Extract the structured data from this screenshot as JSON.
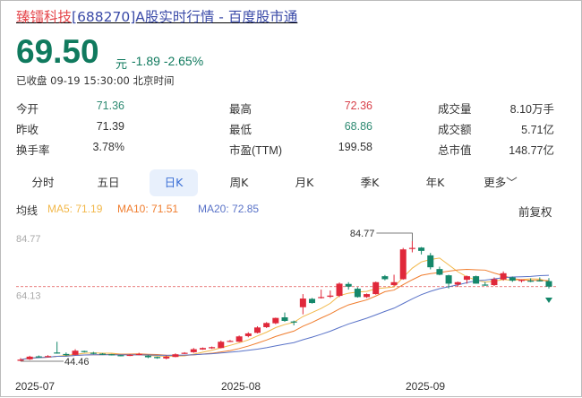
{
  "header": {
    "name": "臻镭科技",
    "rest": "[688270]A股实时行情 - 百度股市通"
  },
  "quote": {
    "price": "69.50",
    "unit": "元",
    "change": "-1.89",
    "change_pct": "-2.65%",
    "status": "已收盘 09-19 15:30:00 北京时间"
  },
  "stats": [
    {
      "label": "今开",
      "value": "71.36",
      "color": "#2e8a72"
    },
    {
      "label": "昨收",
      "value": "71.39",
      "color": "#333333"
    },
    {
      "label": "换手率",
      "value": "3.78%",
      "color": "#333333"
    },
    {
      "label": "最高",
      "value": "72.36",
      "color": "#d8414a"
    },
    {
      "label": "最低",
      "value": "68.86",
      "color": "#2e8a72"
    },
    {
      "label": "市盈(TTM)",
      "value": "199.58",
      "color": "#333333"
    },
    {
      "label": "成交量",
      "value": "8.10万手",
      "color": "#333333"
    },
    {
      "label": "成交额",
      "value": "5.71亿",
      "color": "#333333"
    },
    {
      "label": "总市值",
      "value": "148.77亿",
      "color": "#333333"
    }
  ],
  "tabs": [
    {
      "label": "分时"
    },
    {
      "label": "五日"
    },
    {
      "label": "日K",
      "selected": true
    },
    {
      "label": "周K"
    },
    {
      "label": "月K"
    },
    {
      "label": "季K"
    },
    {
      "label": "年K"
    },
    {
      "label": "更多﹀"
    }
  ],
  "ma": {
    "label": "均线",
    "ma5": "MA5: 71.19",
    "ma10": "MA10: 71.51",
    "ma20": "MA20: 72.85",
    "adjust": "前复权"
  },
  "colors": {
    "up": "#e0283a",
    "down": "#14876a",
    "ma5": "#f2b84a",
    "ma10": "#f07d2e",
    "ma20": "#5a73c8",
    "last_line": "#e05050"
  },
  "chart_data": {
    "type": "candlestick",
    "y_labels": [
      "84.77",
      "64.13"
    ],
    "high_marker": "84.77",
    "low_marker": "44.46",
    "x_labels": [
      "2025-07",
      "2025-08",
      "2025-09"
    ],
    "ylim": [
      44.46,
      84.77
    ],
    "last_close": 69.5,
    "ohlc": [
      [
        44.6,
        45.5,
        44.46,
        45.0
      ],
      [
        45.1,
        46.3,
        44.9,
        46.0
      ],
      [
        46.1,
        46.4,
        45.6,
        46.0
      ],
      [
        45.9,
        46.5,
        45.7,
        46.2
      ],
      [
        47.4,
        51.0,
        47.0,
        47.3
      ],
      [
        46.9,
        47.4,
        46.2,
        46.5
      ],
      [
        46.6,
        48.5,
        46.4,
        48.0
      ],
      [
        47.9,
        48.0,
        47.4,
        47.6
      ],
      [
        47.3,
        47.6,
        46.8,
        47.0
      ],
      [
        47.0,
        47.2,
        46.6,
        46.8
      ],
      [
        46.8,
        46.9,
        46.4,
        46.5
      ],
      [
        46.5,
        46.6,
        46.1,
        46.3
      ],
      [
        46.3,
        46.8,
        46.2,
        46.6
      ],
      [
        46.6,
        47.3,
        46.5,
        46.9
      ],
      [
        46.3,
        46.5,
        45.5,
        45.8
      ],
      [
        45.9,
        46.0,
        45.3,
        45.5
      ],
      [
        45.4,
        46.4,
        45.1,
        46.0
      ],
      [
        45.9,
        47.1,
        45.8,
        46.8
      ],
      [
        47.0,
        47.5,
        46.9,
        47.3
      ],
      [
        47.5,
        48.9,
        47.3,
        48.5
      ],
      [
        48.4,
        49.1,
        48.3,
        48.9
      ],
      [
        48.8,
        49.4,
        48.6,
        49.2
      ],
      [
        48.9,
        51.4,
        48.8,
        51.0
      ],
      [
        51.0,
        51.6,
        50.9,
        51.3
      ],
      [
        51.0,
        53.1,
        50.9,
        52.8
      ],
      [
        52.9,
        54.2,
        52.5,
        53.8
      ],
      [
        54.0,
        56.2,
        53.8,
        55.8
      ],
      [
        55.9,
        57.6,
        55.6,
        57.3
      ],
      [
        57.2,
        59.1,
        56.9,
        59.0
      ],
      [
        59.2,
        60.8,
        57.7,
        58.0
      ],
      [
        57.8,
        58.1,
        56.5,
        57.5
      ],
      [
        62.6,
        67.0,
        60.2,
        65.5
      ],
      [
        65.4,
        65.7,
        63.8,
        64.0
      ],
      [
        65.8,
        68.5,
        65.5,
        66.0
      ],
      [
        66.1,
        68.2,
        65.7,
        66.5
      ],
      [
        66.4,
        70.9,
        66.0,
        70.5
      ],
      [
        70.4,
        71.0,
        68.5,
        69.5
      ],
      [
        68.8,
        69.3,
        65.8,
        66.0
      ],
      [
        66.0,
        67.2,
        65.7,
        67.0
      ],
      [
        67.0,
        71.2,
        66.8,
        71.0
      ],
      [
        73.0,
        73.4,
        71.6,
        72.0
      ],
      [
        70.0,
        73.5,
        69.6,
        71.0
      ],
      [
        72.0,
        82.5,
        71.8,
        82.0
      ],
      [
        82.3,
        84.77,
        81.0,
        82.5
      ],
      [
        82.6,
        82.8,
        80.3,
        81.5
      ],
      [
        80.0,
        80.8,
        75.3,
        76.0
      ],
      [
        75.4,
        76.2,
        73.3,
        73.5
      ],
      [
        73.3,
        73.5,
        68.9,
        70.5
      ],
      [
        70.2,
        71.2,
        69.4,
        71.0
      ],
      [
        71.8,
        73.2,
        70.5,
        73.0
      ],
      [
        73.0,
        73.2,
        70.5,
        70.5
      ],
      [
        70.2,
        71.1,
        69.8,
        70.0
      ],
      [
        70.0,
        72.6,
        69.7,
        72.0
      ],
      [
        71.9,
        74.6,
        71.5,
        74.0
      ],
      [
        72.6,
        72.9,
        71.1,
        71.5
      ],
      [
        71.4,
        71.9,
        70.9,
        71.8
      ],
      [
        71.5,
        72.3,
        71.0,
        71.4
      ],
      [
        71.6,
        72.6,
        71.2,
        71.4
      ],
      [
        71.36,
        72.36,
        68.86,
        69.5
      ]
    ]
  }
}
